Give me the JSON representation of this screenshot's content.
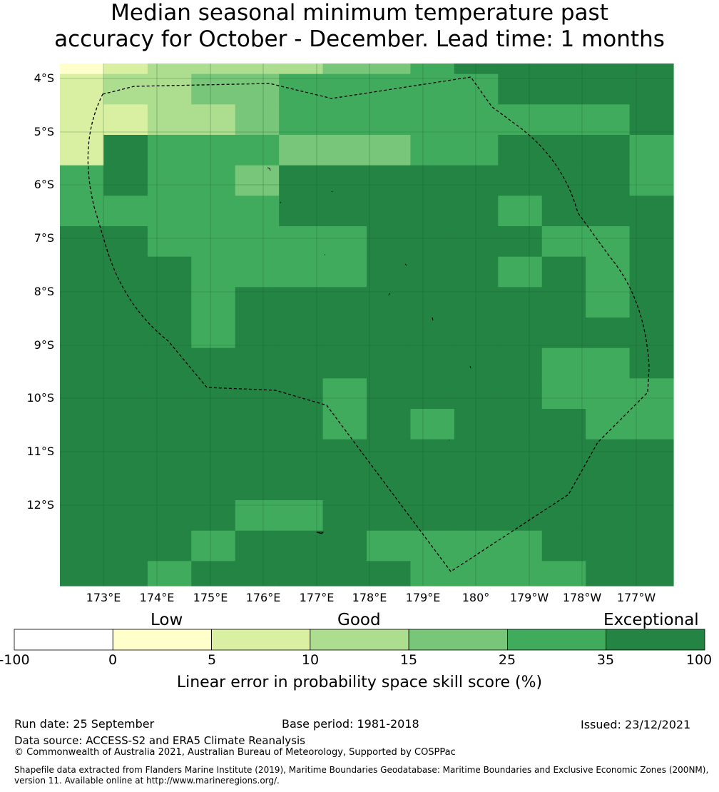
{
  "title": {
    "line1": "Median seasonal minimum temperature past",
    "line2": "accuracy for October - December. Lead time: 1 months"
  },
  "map": {
    "lat_labels": [
      "4°S",
      "5°S",
      "6°S",
      "7°S",
      "8°S",
      "9°S",
      "10°S",
      "11°S",
      "12°S"
    ],
    "lon_labels": [
      "173°E",
      "174°E",
      "175°E",
      "176°E",
      "177°E",
      "178°E",
      "179°E",
      "180°",
      "179°W",
      "178°W",
      "177°W"
    ],
    "grid_columns": 14,
    "grid_rows": 18,
    "category_grid": [
      "12333344566666",
      "23344555556666",
      "22334555555556",
      "26555444556665",
      "56554666666665",
      "55555666665666",
      "66555556666556",
      "66655556665656",
      "66656666666656",
      "66656666666666",
      "66666666666556",
      "66666656666555",
      "66666656566655",
      "66666666666666",
      "66666666666666",
      "66665566666666",
      "66656665555666",
      "66566666555566"
    ],
    "colors": [
      "#ffffff",
      "#ffffcc",
      "#d9f0a3",
      "#addd8e",
      "#78c679",
      "#41ab5d",
      "#238443"
    ],
    "eez_boundary": "Dashed EEZ outline",
    "islands": "Small island outlines"
  },
  "colorbar": {
    "categories": [
      "Low",
      "Good",
      "Exceptional"
    ],
    "ticks": [
      "-100",
      "0",
      "5",
      "10",
      "15",
      "25",
      "35",
      "100"
    ],
    "colors": [
      "#ffffff",
      "#ffffcc",
      "#d9f0a3",
      "#addd8e",
      "#78c679",
      "#41ab5d",
      "#238443"
    ],
    "label": "Linear error in probability space skill score (%)"
  },
  "footer": {
    "run_date": "Run date: 25 September",
    "base_period": "Base period: 1981-2018",
    "issued": "Issued: 23/12/2021",
    "data_source": "Data source: ACCESS-S2 and ERA5 Climate Reanalysis",
    "copyright": "© Commonwealth of Australia 2021, Australian Bureau of Meteorology, Supported by COSPPac",
    "shapefile_line1": "Shapefile data extracted from Flanders Marine Institute (2019), Maritime Boundaries Geodatabase: Maritime Boundaries and Exclusive Economic Zones (200NM),",
    "shapefile_line2": "version 11. Available online at http://www.marineregions.org/."
  }
}
